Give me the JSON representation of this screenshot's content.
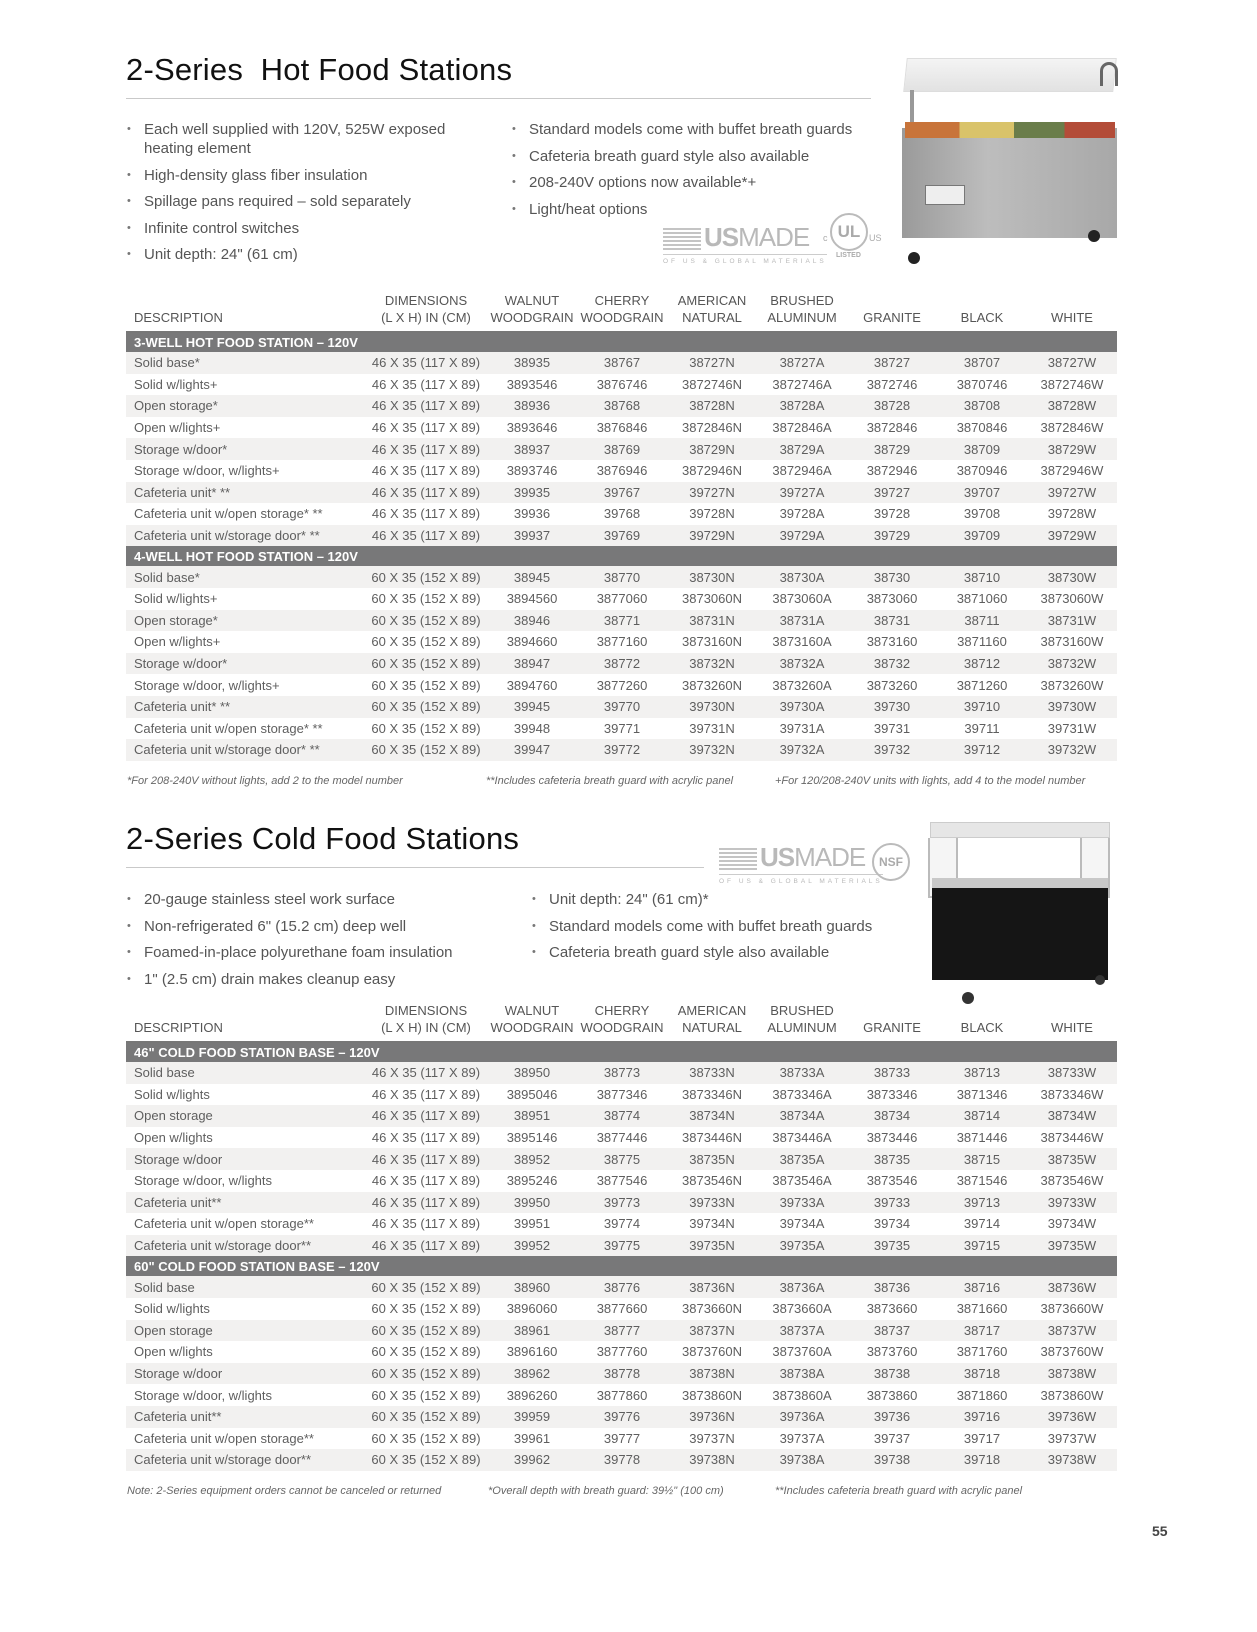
{
  "hot": {
    "title": "2-Series  Hot Food Stations",
    "bullets_left": [
      "Each well supplied with 120V, 525W exposed heating element",
      "High-density glass fiber insulation",
      "Spillage pans required – sold separately",
      "Infinite control switches",
      "Unit depth: 24\" (61 cm)"
    ],
    "bullets_right": [
      "Standard models come with buffet breath guards",
      "Cafeteria breath guard style also available",
      "208-240V options now available*+",
      "Light/heat options"
    ],
    "logos": {
      "usmade": "US",
      "usmade2": "MADE",
      "usmade_sub": "OF US & GLOBAL MATERIALS",
      "ul": "UL",
      "ul_c": "c",
      "ul_us": "US",
      "ul_listed": "LISTED"
    },
    "headers": [
      "DESCRIPTION",
      "DIMENSIONS\n(L X H) IN (CM)",
      "WALNUT\nWOODGRAIN",
      "CHERRY\nWOODGRAIN",
      "AMERICAN\nNATURAL",
      "BRUSHED\nALUMINUM",
      "GRANITE",
      "BLACK",
      "WHITE"
    ],
    "groups": [
      {
        "title": "3-WELL HOT FOOD STATION – 120V",
        "rows": [
          [
            "Solid base*",
            "46 X 35 (117 X 89)",
            "38935",
            "38767",
            "38727N",
            "38727A",
            "38727",
            "38707",
            "38727W"
          ],
          [
            "Solid w/lights+",
            "46 X 35 (117 X 89)",
            "3893546",
            "3876746",
            "3872746N",
            "3872746A",
            "3872746",
            "3870746",
            "3872746W"
          ],
          [
            "Open storage*",
            "46 X 35 (117 X 89)",
            "38936",
            "38768",
            "38728N",
            "38728A",
            "38728",
            "38708",
            "38728W"
          ],
          [
            "Open w/lights+",
            "46 X 35 (117 X 89)",
            "3893646",
            "3876846",
            "3872846N",
            "3872846A",
            "3872846",
            "3870846",
            "3872846W"
          ],
          [
            "Storage w/door*",
            "46 X 35 (117 X 89)",
            "38937",
            "38769",
            "38729N",
            "38729A",
            "38729",
            "38709",
            "38729W"
          ],
          [
            "Storage w/door, w/lights+",
            "46 X 35 (117 X 89)",
            "3893746",
            "3876946",
            "3872946N",
            "3872946A",
            "3872946",
            "3870946",
            "3872946W"
          ],
          [
            "Cafeteria unit* **",
            "46 X 35 (117 X 89)",
            "39935",
            "39767",
            "39727N",
            "39727A",
            "39727",
            "39707",
            "39727W"
          ],
          [
            "Cafeteria unit w/open storage* **",
            "46 X 35 (117 X 89)",
            "39936",
            "39768",
            "39728N",
            "39728A",
            "39728",
            "39708",
            "39728W"
          ],
          [
            "Cafeteria unit w/storage door* **",
            "46 X 35 (117 X 89)",
            "39937",
            "39769",
            "39729N",
            "39729A",
            "39729",
            "39709",
            "39729W"
          ]
        ]
      },
      {
        "title": "4-WELL HOT FOOD STATION – 120V",
        "rows": [
          [
            "Solid base*",
            "60 X 35 (152 X 89)",
            "38945",
            "38770",
            "38730N",
            "38730A",
            "38730",
            "38710",
            "38730W"
          ],
          [
            "Solid w/lights+",
            "60 X 35 (152 X 89)",
            "3894560",
            "3877060",
            "3873060N",
            "3873060A",
            "3873060",
            "3871060",
            "3873060W"
          ],
          [
            "Open storage*",
            "60 X 35 (152 X 89)",
            "38946",
            "38771",
            "38731N",
            "38731A",
            "38731",
            "38711",
            "38731W"
          ],
          [
            "Open w/lights+",
            "60 X 35 (152 X 89)",
            "3894660",
            "3877160",
            "3873160N",
            "3873160A",
            "3873160",
            "3871160",
            "3873160W"
          ],
          [
            "Storage w/door*",
            "60 X 35 (152 X 89)",
            "38947",
            "38772",
            "38732N",
            "38732A",
            "38732",
            "38712",
            "38732W"
          ],
          [
            "Storage w/door, w/lights+",
            "60 X 35 (152 X 89)",
            "3894760",
            "3877260",
            "3873260N",
            "3873260A",
            "3873260",
            "3871260",
            "3873260W"
          ],
          [
            "Cafeteria unit* **",
            "60 X 35 (152 X 89)",
            "39945",
            "39770",
            "39730N",
            "39730A",
            "39730",
            "39710",
            "39730W"
          ],
          [
            "Cafeteria unit w/open storage* **",
            "60 X 35 (152 X 89)",
            "39948",
            "39771",
            "39731N",
            "39731A",
            "39731",
            "39711",
            "39731W"
          ],
          [
            "Cafeteria unit w/storage door* **",
            "60 X 35 (152 X 89)",
            "39947",
            "39772",
            "39732N",
            "39732A",
            "39732",
            "39712",
            "39732W"
          ]
        ]
      }
    ],
    "footnotes": [
      "*For 208-240V without lights, add 2 to the model number",
      "**Includes cafeteria breath guard with acrylic panel",
      "+For 120/208-240V units with lights, add 4 to the model number"
    ]
  },
  "cold": {
    "title": "2-Series Cold Food Stations",
    "bullets_left": [
      "20-gauge stainless steel work surface",
      "Non-refrigerated 6\" (15.2 cm) deep well",
      "Foamed-in-place polyurethane foam insulation",
      "1\" (2.5 cm) drain makes cleanup easy"
    ],
    "bullets_right": [
      "Unit depth: 24\" (61 cm)*",
      "Standard models come with buffet breath guards",
      "Cafeteria breath guard style also available"
    ],
    "logos": {
      "usmade": "US",
      "usmade2": "MADE",
      "usmade_sub": "OF US & GLOBAL MATERIALS",
      "nsf": "NSF"
    },
    "headers": [
      "DESCRIPTION",
      "DIMENSIONS\n(L X H) IN (CM)",
      "WALNUT\nWOODGRAIN",
      "CHERRY\nWOODGRAIN",
      "AMERICAN\nNATURAL",
      "BRUSHED\nALUMINUM",
      "GRANITE",
      "BLACK",
      "WHITE"
    ],
    "groups": [
      {
        "title": "46\" COLD FOOD STATION BASE – 120V",
        "rows": [
          [
            "Solid base",
            "46 X 35 (117 X 89)",
            "38950",
            "38773",
            "38733N",
            "38733A",
            "38733",
            "38713",
            "38733W"
          ],
          [
            "Solid w/lights",
            "46 X 35 (117 X 89)",
            "3895046",
            "3877346",
            "3873346N",
            "3873346A",
            "3873346",
            "3871346",
            "3873346W"
          ],
          [
            "Open storage",
            "46 X 35 (117 X 89)",
            "38951",
            "38774",
            "38734N",
            "38734A",
            "38734",
            "38714",
            "38734W"
          ],
          [
            "Open w/lights",
            "46 X 35 (117 X 89)",
            "3895146",
            "3877446",
            "3873446N",
            "3873446A",
            "3873446",
            "3871446",
            "3873446W"
          ],
          [
            "Storage w/door",
            "46 X 35 (117 X 89)",
            "38952",
            "38775",
            "38735N",
            "38735A",
            "38735",
            "38715",
            "38735W"
          ],
          [
            "Storage w/door, w/lights",
            "46 X 35 (117 X 89)",
            "3895246",
            "3877546",
            "3873546N",
            "3873546A",
            "3873546",
            "3871546",
            "3873546W"
          ],
          [
            "Cafeteria unit**",
            "46 X 35 (117 X 89)",
            "39950",
            "39773",
            "39733N",
            "39733A",
            "39733",
            "39713",
            "39733W"
          ],
          [
            "Cafeteria unit w/open storage**",
            "46 X 35 (117 X 89)",
            "39951",
            "39774",
            "39734N",
            "39734A",
            "39734",
            "39714",
            "39734W"
          ],
          [
            "Cafeteria unit w/storage door**",
            "46 X 35 (117 X 89)",
            "39952",
            "39775",
            "39735N",
            "39735A",
            "39735",
            "39715",
            "39735W"
          ]
        ]
      },
      {
        "title": "60\" COLD FOOD STATION BASE – 120V",
        "rows": [
          [
            "Solid base",
            "60 X 35 (152 X 89)",
            "38960",
            "38776",
            "38736N",
            "38736A",
            "38736",
            "38716",
            "38736W"
          ],
          [
            "Solid w/lights",
            "60 X 35 (152 X 89)",
            "3896060",
            "3877660",
            "3873660N",
            "3873660A",
            "3873660",
            "3871660",
            "3873660W"
          ],
          [
            "Open storage",
            "60 X 35 (152 X 89)",
            "38961",
            "38777",
            "38737N",
            "38737A",
            "38737",
            "38717",
            "38737W"
          ],
          [
            "Open w/lights",
            "60 X 35 (152 X 89)",
            "3896160",
            "3877760",
            "3873760N",
            "3873760A",
            "3873760",
            "3871760",
            "3873760W"
          ],
          [
            "Storage w/door",
            "60 X 35 (152 X 89)",
            "38962",
            "38778",
            "38738N",
            "38738A",
            "38738",
            "38718",
            "38738W"
          ],
          [
            "Storage w/door, w/lights",
            "60 X 35 (152 X 89)",
            "3896260",
            "3877860",
            "3873860N",
            "3873860A",
            "3873860",
            "3871860",
            "3873860W"
          ],
          [
            "Cafeteria unit**",
            "60 X 35 (152 X 89)",
            "39959",
            "39776",
            "39736N",
            "39736A",
            "39736",
            "39716",
            "39736W"
          ],
          [
            "Cafeteria unit w/open storage**",
            "60 X 35 (152 X 89)",
            "39961",
            "39777",
            "39737N",
            "39737A",
            "39737",
            "39717",
            "39737W"
          ],
          [
            "Cafeteria unit w/storage door**",
            "60 X 35 (152 X 89)",
            "39962",
            "39778",
            "39738N",
            "39738A",
            "39738",
            "39718",
            "39738W"
          ]
        ]
      }
    ],
    "footnotes": [
      "Note: 2-Series equipment orders cannot be canceled or returned",
      "*Overall depth with breath guard: 39½\" (100 cm)",
      "**Includes cafeteria breath guard with acrylic panel"
    ]
  },
  "page_number": "55"
}
